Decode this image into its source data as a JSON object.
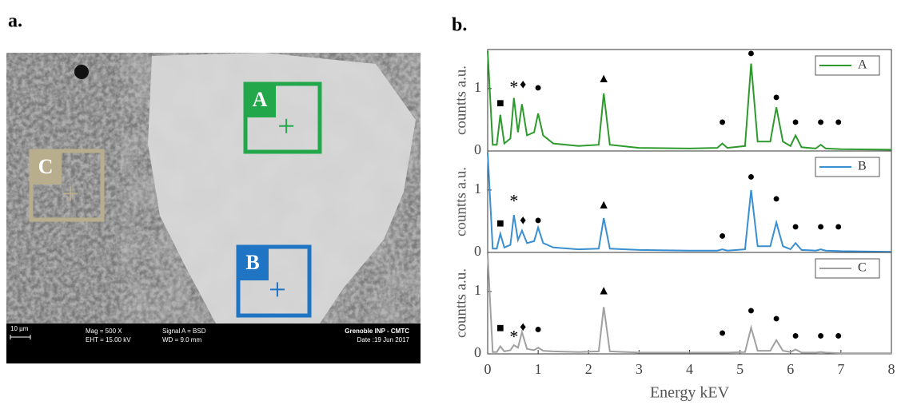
{
  "panel_labels": [
    "a.",
    "b."
  ],
  "sem": {
    "regions": [
      {
        "label": "A",
        "color": "#22a84a"
      },
      {
        "label": "B",
        "color": "#1f74c4"
      },
      {
        "label": "C",
        "color": "#b8ad8c"
      }
    ],
    "scale_bar": "10 µm",
    "info": [
      "Mag =  500 X",
      "EHT = 15.00 kV",
      "Signal A = BSD",
      "WD =  9.0 mm",
      "Grenoble INP - CMTC",
      "Date :19 Jun 2017"
    ]
  },
  "chart_data": [
    {
      "type": "line",
      "ylabel": "countts a.u.",
      "xlim": [
        0,
        8
      ],
      "ylim": [
        0,
        1.6
      ],
      "yticks": [
        0,
        1
      ],
      "x": [
        0,
        0.1,
        0.18,
        0.25,
        0.33,
        0.45,
        0.52,
        0.6,
        0.68,
        0.78,
        0.92,
        1.0,
        1.1,
        1.3,
        1.8,
        2.2,
        2.3,
        2.42,
        3,
        4,
        4.55,
        4.65,
        4.75,
        5.1,
        5.22,
        5.35,
        5.6,
        5.72,
        5.85,
        6.0,
        6.1,
        6.22,
        6.5,
        6.6,
        6.7,
        7,
        8
      ],
      "series": [
        {
          "name": "A",
          "color": "#2e9a2e",
          "values": [
            1.6,
            0.1,
            0.1,
            0.58,
            0.12,
            0.2,
            0.85,
            0.3,
            0.75,
            0.25,
            0.3,
            0.6,
            0.25,
            0.12,
            0.08,
            0.1,
            0.92,
            0.1,
            0.05,
            0.04,
            0.05,
            0.12,
            0.05,
            0.08,
            1.4,
            0.15,
            0.15,
            0.7,
            0.15,
            0.08,
            0.25,
            0.06,
            0.04,
            0.1,
            0.04,
            0.03,
            0.02
          ]
        }
      ],
      "annotations": [
        {
          "text": "■",
          "x": 0.25,
          "y": 0.75
        },
        {
          "text": "*",
          "x": 0.52,
          "y": 1.0
        },
        {
          "text": "♦",
          "x": 0.7,
          "y": 1.05
        },
        {
          "text": "●",
          "x": 1.0,
          "y": 1.0
        },
        {
          "text": "▲",
          "x": 2.3,
          "y": 1.15
        },
        {
          "text": "●",
          "x": 4.65,
          "y": 0.45
        },
        {
          "text": "●",
          "x": 5.22,
          "y": 1.55
        },
        {
          "text": "●",
          "x": 5.72,
          "y": 0.85
        },
        {
          "text": "●",
          "x": 6.1,
          "y": 0.45
        },
        {
          "text": "●",
          "x": 6.6,
          "y": 0.45
        },
        {
          "text": "●",
          "x": 6.95,
          "y": 0.45
        }
      ]
    },
    {
      "type": "line",
      "ylabel": "countts a.u.",
      "xlim": [
        0,
        8
      ],
      "ylim": [
        0,
        1.6
      ],
      "yticks": [
        0,
        1
      ],
      "x": [
        0,
        0.1,
        0.18,
        0.25,
        0.33,
        0.45,
        0.52,
        0.6,
        0.68,
        0.78,
        0.92,
        1.0,
        1.1,
        1.3,
        1.8,
        2.2,
        2.3,
        2.42,
        3,
        4,
        4.55,
        4.65,
        4.75,
        5.1,
        5.22,
        5.35,
        5.6,
        5.72,
        5.85,
        6.0,
        6.1,
        6.22,
        6.5,
        6.6,
        6.7,
        7,
        8
      ],
      "series": [
        {
          "name": "B",
          "color": "#3a8fd0",
          "values": [
            1.6,
            0.06,
            0.06,
            0.3,
            0.08,
            0.12,
            0.6,
            0.2,
            0.35,
            0.15,
            0.18,
            0.4,
            0.15,
            0.08,
            0.05,
            0.06,
            0.55,
            0.06,
            0.04,
            0.03,
            0.03,
            0.05,
            0.03,
            0.05,
            1.0,
            0.1,
            0.1,
            0.48,
            0.1,
            0.05,
            0.15,
            0.04,
            0.03,
            0.05,
            0.03,
            0.02,
            0.01
          ]
        }
      ],
      "annotations": [
        {
          "text": "■",
          "x": 0.25,
          "y": 0.45
        },
        {
          "text": "*",
          "x": 0.52,
          "y": 0.8
        },
        {
          "text": "♦",
          "x": 0.7,
          "y": 0.5
        },
        {
          "text": "●",
          "x": 1.0,
          "y": 0.5
        },
        {
          "text": "▲",
          "x": 2.3,
          "y": 0.75
        },
        {
          "text": "●",
          "x": 4.65,
          "y": 0.25
        },
        {
          "text": "●",
          "x": 5.22,
          "y": 1.2
        },
        {
          "text": "●",
          "x": 5.72,
          "y": 0.85
        },
        {
          "text": "●",
          "x": 6.1,
          "y": 0.4
        },
        {
          "text": "●",
          "x": 6.6,
          "y": 0.4
        },
        {
          "text": "●",
          "x": 6.95,
          "y": 0.4
        }
      ]
    },
    {
      "type": "line",
      "ylabel": "countts a.u.",
      "xlabel": "Energy kEV",
      "xlim": [
        0,
        8
      ],
      "ylim": [
        0,
        1.6
      ],
      "yticks": [
        0,
        1
      ],
      "xticks": [
        0,
        1,
        2,
        3,
        4,
        5,
        6,
        7,
        8
      ],
      "x": [
        0,
        0.1,
        0.18,
        0.25,
        0.33,
        0.45,
        0.52,
        0.6,
        0.68,
        0.78,
        0.92,
        1.0,
        1.1,
        1.3,
        1.8,
        2.2,
        2.3,
        2.42,
        3,
        4,
        4.55,
        4.65,
        4.75,
        5.1,
        5.22,
        5.35,
        5.6,
        5.72,
        5.85,
        6.0,
        6.1,
        6.22,
        6.5,
        6.6,
        6.7,
        7,
        8
      ],
      "series": [
        {
          "name": "C",
          "color": "#a0a0a0",
          "values": [
            1.6,
            0.03,
            0.03,
            0.12,
            0.04,
            0.06,
            0.14,
            0.1,
            0.35,
            0.08,
            0.06,
            0.1,
            0.05,
            0.04,
            0.03,
            0.04,
            0.75,
            0.04,
            0.02,
            0.02,
            0.02,
            0.02,
            0.02,
            0.03,
            0.42,
            0.05,
            0.05,
            0.22,
            0.05,
            0.03,
            0.07,
            0.02,
            0.02,
            0.03,
            0.02,
            0.01,
            0.01
          ]
        }
      ],
      "annotations": [
        {
          "text": "■",
          "x": 0.25,
          "y": 0.4
        },
        {
          "text": "*",
          "x": 0.52,
          "y": 0.25
        },
        {
          "text": "♦",
          "x": 0.7,
          "y": 0.42
        },
        {
          "text": "●",
          "x": 1.0,
          "y": 0.38
        },
        {
          "text": "▲",
          "x": 2.3,
          "y": 1.0
        },
        {
          "text": "●",
          "x": 4.65,
          "y": 0.32
        },
        {
          "text": "●",
          "x": 5.22,
          "y": 0.68
        },
        {
          "text": "●",
          "x": 5.72,
          "y": 0.55
        },
        {
          "text": "●",
          "x": 6.1,
          "y": 0.28
        },
        {
          "text": "●",
          "x": 6.6,
          "y": 0.28
        },
        {
          "text": "●",
          "x": 6.95,
          "y": 0.28
        }
      ]
    }
  ]
}
